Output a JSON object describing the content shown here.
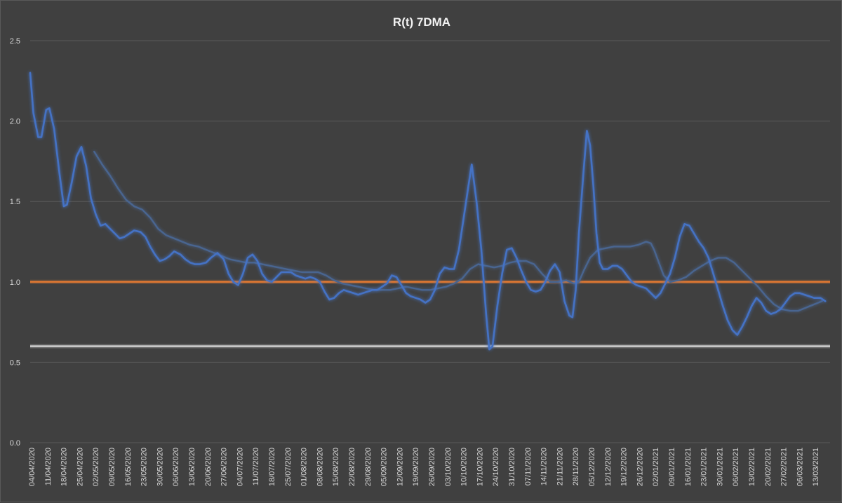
{
  "chart_data": {
    "type": "line",
    "title": "R(t) 7DMA",
    "xlabel": "",
    "ylabel": "",
    "ylim": [
      0.0,
      2.5
    ],
    "y_ticks": [
      "0.0",
      "0.5",
      "1.0",
      "1.5",
      "2.0",
      "2.5"
    ],
    "grid": "horizontal",
    "legend": "none",
    "x_categories": [
      "04/04/2020",
      "11/04/2020",
      "18/04/2020",
      "25/04/2020",
      "02/05/2020",
      "09/05/2020",
      "16/05/2020",
      "23/05/2020",
      "30/05/2020",
      "06/06/2020",
      "13/06/2020",
      "20/06/2020",
      "27/06/2020",
      "04/07/2020",
      "11/07/2020",
      "18/07/2020",
      "25/07/2020",
      "01/08/2020",
      "08/08/2020",
      "15/08/2020",
      "22/08/2020",
      "29/08/2020",
      "05/09/2020",
      "12/09/2020",
      "19/09/2020",
      "26/09/2020",
      "03/10/2020",
      "10/10/2020",
      "17/10/2020",
      "24/10/2020",
      "31/10/2020",
      "07/11/2020",
      "14/11/2020",
      "21/11/2020",
      "28/11/2020",
      "05/12/2020",
      "12/12/2020",
      "19/12/2020",
      "26/12/2020",
      "02/01/2021",
      "09/01/2021",
      "16/01/2021",
      "23/01/2021",
      "30/01/2021",
      "06/02/2021",
      "13/02/2021",
      "20/02/2021",
      "27/02/2021",
      "06/03/2021",
      "13/03/2021"
    ],
    "series": [
      {
        "color": "#4472c4",
        "values": [
          [
            0,
            2.3
          ],
          [
            0.2,
            2.05
          ],
          [
            0.5,
            1.9
          ],
          [
            0.7,
            1.9
          ],
          [
            1.0,
            2.07
          ],
          [
            1.2,
            2.08
          ],
          [
            1.5,
            1.95
          ],
          [
            1.8,
            1.7
          ],
          [
            2.1,
            1.47
          ],
          [
            2.3,
            1.48
          ],
          [
            2.6,
            1.62
          ],
          [
            2.9,
            1.78
          ],
          [
            3.2,
            1.84
          ],
          [
            3.5,
            1.72
          ],
          [
            3.8,
            1.52
          ],
          [
            4.1,
            1.42
          ],
          [
            4.4,
            1.35
          ],
          [
            4.7,
            1.36
          ],
          [
            5.0,
            1.33
          ],
          [
            5.3,
            1.3
          ],
          [
            5.6,
            1.27
          ],
          [
            5.9,
            1.28
          ],
          [
            6.2,
            1.3
          ],
          [
            6.5,
            1.32
          ],
          [
            6.9,
            1.31
          ],
          [
            7.2,
            1.28
          ],
          [
            7.5,
            1.22
          ],
          [
            7.8,
            1.17
          ],
          [
            8.1,
            1.13
          ],
          [
            8.4,
            1.14
          ],
          [
            8.7,
            1.16
          ],
          [
            9.0,
            1.19
          ],
          [
            9.4,
            1.17
          ],
          [
            9.7,
            1.14
          ],
          [
            10.0,
            1.12
          ],
          [
            10.3,
            1.11
          ],
          [
            10.6,
            1.11
          ],
          [
            11.0,
            1.12
          ],
          [
            11.3,
            1.15
          ],
          [
            11.7,
            1.18
          ],
          [
            12.1,
            1.14
          ],
          [
            12.4,
            1.05
          ],
          [
            12.7,
            1.0
          ],
          [
            13.0,
            0.98
          ],
          [
            13.3,
            1.05
          ],
          [
            13.6,
            1.15
          ],
          [
            13.9,
            1.17
          ],
          [
            14.2,
            1.13
          ],
          [
            14.5,
            1.05
          ],
          [
            14.8,
            1.01
          ],
          [
            15.1,
            1.0
          ],
          [
            15.4,
            1.03
          ],
          [
            15.7,
            1.06
          ],
          [
            16.0,
            1.06
          ],
          [
            16.3,
            1.06
          ],
          [
            16.6,
            1.04
          ],
          [
            16.9,
            1.03
          ],
          [
            17.2,
            1.02
          ],
          [
            17.5,
            1.03
          ],
          [
            17.8,
            1.02
          ],
          [
            18.1,
            1.0
          ],
          [
            18.4,
            0.94
          ],
          [
            18.7,
            0.89
          ],
          [
            19.0,
            0.9
          ],
          [
            19.3,
            0.93
          ],
          [
            19.6,
            0.95
          ],
          [
            19.9,
            0.94
          ],
          [
            20.2,
            0.93
          ],
          [
            20.5,
            0.92
          ],
          [
            20.8,
            0.93
          ],
          [
            21.1,
            0.94
          ],
          [
            21.4,
            0.95
          ],
          [
            21.7,
            0.95
          ],
          [
            22.0,
            0.97
          ],
          [
            22.3,
            0.99
          ],
          [
            22.6,
            1.04
          ],
          [
            22.9,
            1.03
          ],
          [
            23.2,
            0.98
          ],
          [
            23.5,
            0.93
          ],
          [
            23.8,
            0.91
          ],
          [
            24.1,
            0.9
          ],
          [
            24.4,
            0.89
          ],
          [
            24.7,
            0.87
          ],
          [
            25.0,
            0.89
          ],
          [
            25.3,
            0.95
          ],
          [
            25.6,
            1.05
          ],
          [
            25.9,
            1.09
          ],
          [
            26.2,
            1.08
          ],
          [
            26.5,
            1.08
          ],
          [
            26.8,
            1.2
          ],
          [
            27.1,
            1.4
          ],
          [
            27.4,
            1.6
          ],
          [
            27.6,
            1.73
          ],
          [
            27.9,
            1.5
          ],
          [
            28.2,
            1.2
          ],
          [
            28.5,
            0.8
          ],
          [
            28.7,
            0.58
          ],
          [
            28.9,
            0.6
          ],
          [
            29.2,
            0.85
          ],
          [
            29.5,
            1.05
          ],
          [
            29.8,
            1.2
          ],
          [
            30.1,
            1.21
          ],
          [
            30.4,
            1.15
          ],
          [
            30.7,
            1.07
          ],
          [
            31.0,
            1.0
          ],
          [
            31.3,
            0.95
          ],
          [
            31.6,
            0.94
          ],
          [
            31.9,
            0.95
          ],
          [
            32.2,
            1.0
          ],
          [
            32.5,
            1.07
          ],
          [
            32.8,
            1.11
          ],
          [
            33.1,
            1.06
          ],
          [
            33.4,
            0.88
          ],
          [
            33.7,
            0.79
          ],
          [
            33.9,
            0.78
          ],
          [
            34.1,
            0.95
          ],
          [
            34.3,
            1.3
          ],
          [
            34.6,
            1.7
          ],
          [
            34.8,
            1.94
          ],
          [
            35.0,
            1.85
          ],
          [
            35.2,
            1.6
          ],
          [
            35.4,
            1.3
          ],
          [
            35.6,
            1.12
          ],
          [
            35.8,
            1.08
          ],
          [
            36.1,
            1.08
          ],
          [
            36.4,
            1.1
          ],
          [
            36.7,
            1.1
          ],
          [
            37.0,
            1.08
          ],
          [
            37.3,
            1.04
          ],
          [
            37.6,
            1.0
          ],
          [
            37.9,
            0.98
          ],
          [
            38.2,
            0.97
          ],
          [
            38.5,
            0.96
          ],
          [
            38.8,
            0.93
          ],
          [
            39.1,
            0.9
          ],
          [
            39.4,
            0.93
          ],
          [
            39.7,
            0.99
          ],
          [
            40.0,
            1.05
          ],
          [
            40.3,
            1.15
          ],
          [
            40.6,
            1.28
          ],
          [
            40.9,
            1.36
          ],
          [
            41.2,
            1.35
          ],
          [
            41.5,
            1.3
          ],
          [
            41.8,
            1.25
          ],
          [
            42.1,
            1.21
          ],
          [
            42.4,
            1.15
          ],
          [
            42.7,
            1.05
          ],
          [
            43.0,
            0.95
          ],
          [
            43.3,
            0.85
          ],
          [
            43.6,
            0.76
          ],
          [
            43.9,
            0.7
          ],
          [
            44.2,
            0.67
          ],
          [
            44.5,
            0.72
          ],
          [
            44.8,
            0.78
          ],
          [
            45.1,
            0.85
          ],
          [
            45.4,
            0.9
          ],
          [
            45.7,
            0.87
          ],
          [
            46.0,
            0.82
          ],
          [
            46.3,
            0.8
          ],
          [
            46.6,
            0.81
          ],
          [
            46.9,
            0.83
          ],
          [
            47.2,
            0.87
          ],
          [
            47.5,
            0.91
          ],
          [
            47.8,
            0.93
          ],
          [
            48.1,
            0.93
          ],
          [
            48.4,
            0.92
          ],
          [
            48.7,
            0.91
          ],
          [
            49.0,
            0.9
          ],
          [
            49.4,
            0.9
          ],
          [
            49.7,
            0.88
          ]
        ]
      },
      {
        "color": "#4a6590",
        "values": [
          [
            4.0,
            1.81
          ],
          [
            4.5,
            1.73
          ],
          [
            5.0,
            1.66
          ],
          [
            5.5,
            1.58
          ],
          [
            6.0,
            1.51
          ],
          [
            6.5,
            1.47
          ],
          [
            7.0,
            1.45
          ],
          [
            7.5,
            1.4
          ],
          [
            8.0,
            1.33
          ],
          [
            8.5,
            1.29
          ],
          [
            9.0,
            1.27
          ],
          [
            9.5,
            1.25
          ],
          [
            10.0,
            1.23
          ],
          [
            10.5,
            1.22
          ],
          [
            11.0,
            1.2
          ],
          [
            11.5,
            1.18
          ],
          [
            12.0,
            1.16
          ],
          [
            12.5,
            1.14
          ],
          [
            13.0,
            1.13
          ],
          [
            13.5,
            1.12
          ],
          [
            14.0,
            1.12
          ],
          [
            14.5,
            1.11
          ],
          [
            15.0,
            1.1
          ],
          [
            15.5,
            1.09
          ],
          [
            16.0,
            1.08
          ],
          [
            16.5,
            1.07
          ],
          [
            17.0,
            1.06
          ],
          [
            17.5,
            1.06
          ],
          [
            18.0,
            1.06
          ],
          [
            18.5,
            1.04
          ],
          [
            19.0,
            1.01
          ],
          [
            19.5,
            0.99
          ],
          [
            20.0,
            0.98
          ],
          [
            20.5,
            0.97
          ],
          [
            21.0,
            0.96
          ],
          [
            21.5,
            0.95
          ],
          [
            22.0,
            0.95
          ],
          [
            22.5,
            0.95
          ],
          [
            23.0,
            0.96
          ],
          [
            23.5,
            0.97
          ],
          [
            24.0,
            0.96
          ],
          [
            24.5,
            0.95
          ],
          [
            25.0,
            0.95
          ],
          [
            25.5,
            0.96
          ],
          [
            26.0,
            0.97
          ],
          [
            26.5,
            0.99
          ],
          [
            27.0,
            1.02
          ],
          [
            27.5,
            1.08
          ],
          [
            28.0,
            1.11
          ],
          [
            28.5,
            1.1
          ],
          [
            29.0,
            1.09
          ],
          [
            29.5,
            1.1
          ],
          [
            30.0,
            1.12
          ],
          [
            30.5,
            1.13
          ],
          [
            31.0,
            1.13
          ],
          [
            31.5,
            1.11
          ],
          [
            32.0,
            1.05
          ],
          [
            32.5,
            1.0
          ],
          [
            33.0,
            1.0
          ],
          [
            33.5,
            1.01
          ],
          [
            34.0,
            0.99
          ],
          [
            34.3,
            1.0
          ],
          [
            34.6,
            1.07
          ],
          [
            35.0,
            1.15
          ],
          [
            35.5,
            1.2
          ],
          [
            36.0,
            1.21
          ],
          [
            36.5,
            1.22
          ],
          [
            37.0,
            1.22
          ],
          [
            37.5,
            1.22
          ],
          [
            38.0,
            1.23
          ],
          [
            38.5,
            1.25
          ],
          [
            38.8,
            1.24
          ],
          [
            39.0,
            1.2
          ],
          [
            39.3,
            1.12
          ],
          [
            39.6,
            1.04
          ],
          [
            40.0,
            1.0
          ],
          [
            40.5,
            1.01
          ],
          [
            41.0,
            1.03
          ],
          [
            41.5,
            1.07
          ],
          [
            42.0,
            1.1
          ],
          [
            42.5,
            1.13
          ],
          [
            43.0,
            1.15
          ],
          [
            43.5,
            1.15
          ],
          [
            44.0,
            1.12
          ],
          [
            44.5,
            1.07
          ],
          [
            45.0,
            1.02
          ],
          [
            45.5,
            0.97
          ],
          [
            46.0,
            0.91
          ],
          [
            46.5,
            0.86
          ],
          [
            47.0,
            0.83
          ],
          [
            47.5,
            0.82
          ],
          [
            48.0,
            0.82
          ],
          [
            48.5,
            0.84
          ],
          [
            49.0,
            0.86
          ],
          [
            49.5,
            0.88
          ]
        ]
      }
    ],
    "reference_lines": [
      {
        "y": 1.0,
        "color": "#ed7d31"
      },
      {
        "y": 0.6,
        "color": "#d9d9d9"
      }
    ]
  }
}
